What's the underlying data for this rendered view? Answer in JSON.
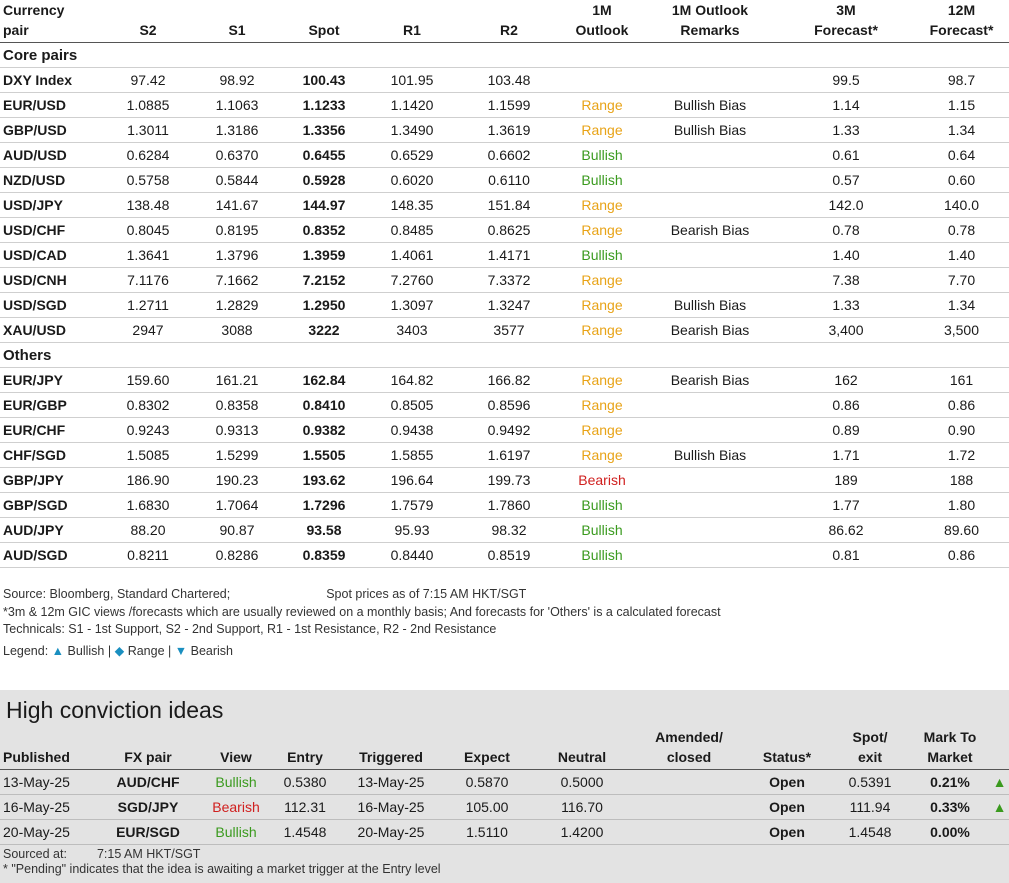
{
  "headers": {
    "pair": [
      "Currency",
      "pair"
    ],
    "s2": "S2",
    "s1": "S1",
    "spot": "Spot",
    "r1": "R1",
    "r2": "R2",
    "outlook": [
      "1M",
      "Outlook"
    ],
    "remarks": [
      "1M Outlook",
      "Remarks"
    ],
    "f3m": [
      "3M",
      "Forecast*"
    ],
    "f12m": [
      "12M",
      "Forecast*"
    ]
  },
  "sections": [
    {
      "title": "Core pairs",
      "rows": [
        {
          "pair": "DXY Index",
          "s2": "97.42",
          "s1": "98.92",
          "spot": "100.43",
          "r1": "101.95",
          "r2": "103.48",
          "outlook": "",
          "remark": "",
          "f3m": "99.5",
          "f12m": "98.7"
        },
        {
          "pair": "EUR/USD",
          "s2": "1.0885",
          "s1": "1.1063",
          "spot": "1.1233",
          "r1": "1.1420",
          "r2": "1.1599",
          "outlook": "Range",
          "remark": "Bullish Bias",
          "f3m": "1.14",
          "f12m": "1.15"
        },
        {
          "pair": "GBP/USD",
          "s2": "1.3011",
          "s1": "1.3186",
          "spot": "1.3356",
          "r1": "1.3490",
          "r2": "1.3619",
          "outlook": "Range",
          "remark": "Bullish Bias",
          "f3m": "1.33",
          "f12m": "1.34"
        },
        {
          "pair": "AUD/USD",
          "s2": "0.6284",
          "s1": "0.6370",
          "spot": "0.6455",
          "r1": "0.6529",
          "r2": "0.6602",
          "outlook": "Bullish",
          "remark": "",
          "f3m": "0.61",
          "f12m": "0.64"
        },
        {
          "pair": "NZD/USD",
          "s2": "0.5758",
          "s1": "0.5844",
          "spot": "0.5928",
          "r1": "0.6020",
          "r2": "0.6110",
          "outlook": "Bullish",
          "remark": "",
          "f3m": "0.57",
          "f12m": "0.60"
        },
        {
          "pair": "USD/JPY",
          "s2": "138.48",
          "s1": "141.67",
          "spot": "144.97",
          "r1": "148.35",
          "r2": "151.84",
          "outlook": "Range",
          "remark": "",
          "f3m": "142.0",
          "f12m": "140.0"
        },
        {
          "pair": "USD/CHF",
          "s2": "0.8045",
          "s1": "0.8195",
          "spot": "0.8352",
          "r1": "0.8485",
          "r2": "0.8625",
          "outlook": "Range",
          "remark": "Bearish Bias",
          "f3m": "0.78",
          "f12m": "0.78"
        },
        {
          "pair": "USD/CAD",
          "s2": "1.3641",
          "s1": "1.3796",
          "spot": "1.3959",
          "r1": "1.4061",
          "r2": "1.4171",
          "outlook": "Bullish",
          "remark": "",
          "f3m": "1.40",
          "f12m": "1.40"
        },
        {
          "pair": "USD/CNH",
          "s2": "7.1176",
          "s1": "7.1662",
          "spot": "7.2152",
          "r1": "7.2760",
          "r2": "7.3372",
          "outlook": "Range",
          "remark": "",
          "f3m": "7.38",
          "f12m": "7.70"
        },
        {
          "pair": "USD/SGD",
          "s2": "1.2711",
          "s1": "1.2829",
          "spot": "1.2950",
          "r1": "1.3097",
          "r2": "1.3247",
          "outlook": "Range",
          "remark": "Bullish Bias",
          "f3m": "1.33",
          "f12m": "1.34"
        },
        {
          "pair": "XAU/USD",
          "s2": "2947",
          "s1": "3088",
          "spot": "3222",
          "r1": "3403",
          "r2": "3577",
          "outlook": "Range",
          "remark": "Bearish Bias",
          "f3m": "3,400",
          "f12m": "3,500"
        }
      ]
    },
    {
      "title": "Others",
      "rows": [
        {
          "pair": "EUR/JPY",
          "s2": "159.60",
          "s1": "161.21",
          "spot": "162.84",
          "r1": "164.82",
          "r2": "166.82",
          "outlook": "Range",
          "remark": "Bearish Bias",
          "f3m": "162",
          "f12m": "161"
        },
        {
          "pair": "EUR/GBP",
          "s2": "0.8302",
          "s1": "0.8358",
          "spot": "0.8410",
          "r1": "0.8505",
          "r2": "0.8596",
          "outlook": "Range",
          "remark": "",
          "f3m": "0.86",
          "f12m": "0.86"
        },
        {
          "pair": "EUR/CHF",
          "s2": "0.9243",
          "s1": "0.9313",
          "spot": "0.9382",
          "r1": "0.9438",
          "r2": "0.9492",
          "outlook": "Range",
          "remark": "",
          "f3m": "0.89",
          "f12m": "0.90"
        },
        {
          "pair": "CHF/SGD",
          "s2": "1.5085",
          "s1": "1.5299",
          "spot": "1.5505",
          "r1": "1.5855",
          "r2": "1.6197",
          "outlook": "Range",
          "remark": "Bullish Bias",
          "f3m": "1.71",
          "f12m": "1.72"
        },
        {
          "pair": "GBP/JPY",
          "s2": "186.90",
          "s1": "190.23",
          "spot": "193.62",
          "r1": "196.64",
          "r2": "199.73",
          "outlook": "Bearish",
          "remark": "",
          "f3m": "189",
          "f12m": "188"
        },
        {
          "pair": "GBP/SGD",
          "s2": "1.6830",
          "s1": "1.7064",
          "spot": "1.7296",
          "r1": "1.7579",
          "r2": "1.7860",
          "outlook": "Bullish",
          "remark": "",
          "f3m": "1.77",
          "f12m": "1.80"
        },
        {
          "pair": "AUD/JPY",
          "s2": "88.20",
          "s1": "90.87",
          "spot": "93.58",
          "r1": "95.93",
          "r2": "98.32",
          "outlook": "Bullish",
          "remark": "",
          "f3m": "86.62",
          "f12m": "89.60"
        },
        {
          "pair": "AUD/SGD",
          "s2": "0.8211",
          "s1": "0.8286",
          "spot": "0.8359",
          "r1": "0.8440",
          "r2": "0.8519",
          "outlook": "Bullish",
          "remark": "",
          "f3m": "0.81",
          "f12m": "0.86"
        }
      ]
    }
  ],
  "outlook_colors": {
    "Bullish": "#3a9a1e",
    "Range": "#e8a317",
    "Bearish": "#d0201f"
  },
  "notes": {
    "source": "Source: Bloomberg, Standard Chartered;",
    "spot_time": "Spot prices as of 7:15 AM HKT/SGT",
    "forecast_note": "*3m & 12m GIC views /forecasts which are usually reviewed on a monthly basis; And forecasts for 'Others' is a calculated forecast",
    "technicals": "Technicals: S1 - 1st Support, S2 - 2nd Support, R1 - 1st Resistance, R2 - 2nd Resistance",
    "legend_label": "Legend:",
    "legend_bullish": "Bullish",
    "legend_range": "Range",
    "legend_bearish": "Bearish",
    "legend_sep": "|"
  },
  "legend_icons": {
    "bullish": "triangle-up",
    "range": "diamond",
    "bearish": "triangle-down"
  },
  "high_conviction": {
    "title": "High conviction ideas",
    "headers": {
      "published": "Published",
      "pair": "FX pair",
      "view": "View",
      "entry": "Entry",
      "triggered": "Triggered",
      "expect": "Expect",
      "neutral": "Neutral",
      "amended": [
        "Amended/",
        "closed"
      ],
      "status": "Status*",
      "spot": [
        "Spot/",
        "exit"
      ],
      "mtm": [
        "Mark To",
        "Market"
      ]
    },
    "rows": [
      {
        "published": "13-May-25",
        "pair": "AUD/CHF",
        "view": "Bullish",
        "entry": "0.5380",
        "triggered": "13-May-25",
        "expect": "0.5870",
        "neutral": "0.5000",
        "amended": "",
        "status": "Open",
        "spot": "0.5391",
        "mtm": "0.21%",
        "trend": "up"
      },
      {
        "published": "16-May-25",
        "pair": "SGD/JPY",
        "view": "Bearish",
        "entry": "112.31",
        "triggered": "16-May-25",
        "expect": "105.00",
        "neutral": "116.70",
        "amended": "",
        "status": "Open",
        "spot": "111.94",
        "mtm": "0.33%",
        "trend": "up"
      },
      {
        "published": "20-May-25",
        "pair": "EUR/SGD",
        "view": "Bullish",
        "entry": "1.4548",
        "triggered": "20-May-25",
        "expect": "1.5110",
        "neutral": "1.4200",
        "amended": "",
        "status": "Open",
        "spot": "1.4548",
        "mtm": "0.00%",
        "trend": ""
      }
    ],
    "sourced_label": "Sourced at:",
    "sourced_time": "7:15 AM HKT/SGT",
    "pending_note": "* \"Pending\" indicates that the idea is awaiting a market trigger at the Entry level"
  }
}
